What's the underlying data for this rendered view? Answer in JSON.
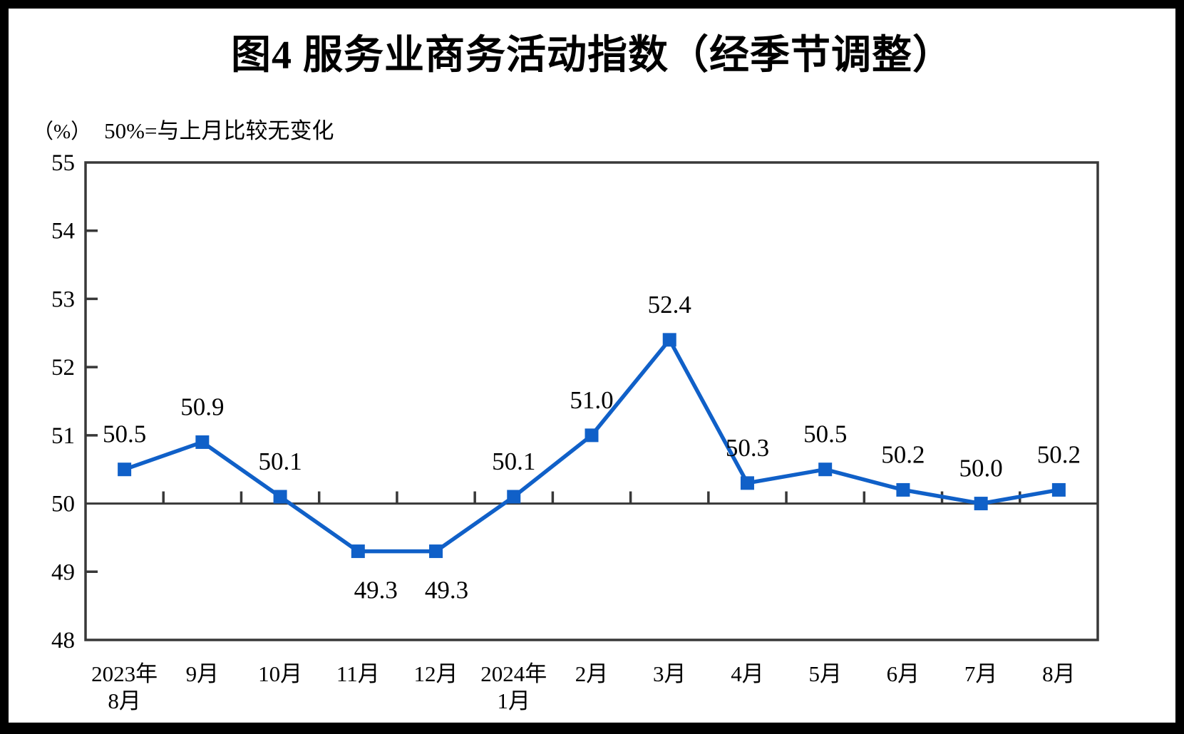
{
  "title": "图4  服务业商务活动指数（经季节调整）",
  "y_axis_unit": "（%）",
  "note": "50%=与上月比较无变化",
  "chart_data": {
    "type": "line",
    "title": "图4 服务业商务活动指数（经季节调整）",
    "ylabel": "（%）",
    "annotation": "50%=与上月比较无变化",
    "categories": [
      "2023年|8月",
      "9月",
      "10月",
      "11月",
      "12月",
      "2024年|1月",
      "2月",
      "3月",
      "4月",
      "5月",
      "6月",
      "7月",
      "8月"
    ],
    "values": [
      50.5,
      50.9,
      50.1,
      49.3,
      49.3,
      50.1,
      51.0,
      52.4,
      50.3,
      50.5,
      50.2,
      50.0,
      50.2
    ],
    "ylim": [
      48,
      55
    ],
    "ytick_step": 1,
    "reference_line": 50,
    "grid": false,
    "legend": false,
    "marker": "square",
    "series_color": "#1060C8",
    "axis_color": "#383838",
    "label_color": "#000000"
  }
}
